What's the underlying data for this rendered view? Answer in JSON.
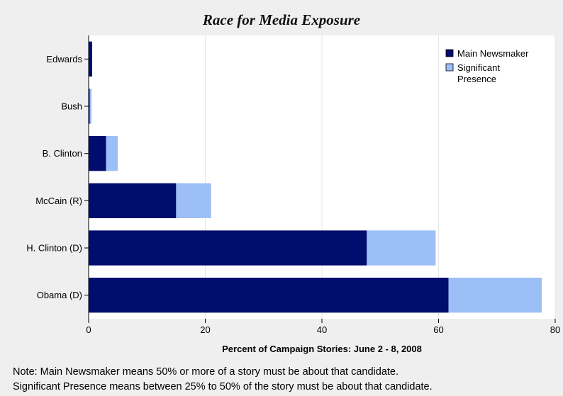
{
  "chart_data": {
    "type": "bar",
    "orientation": "horizontal",
    "stacked": true,
    "title": "Race for Media Exposure",
    "xlabel": "Percent of Campaign Stories: June 2 - 8, 2008",
    "ylabel": "",
    "xlim": [
      0,
      80
    ],
    "xticks": [
      0,
      20,
      40,
      60,
      80
    ],
    "grid": true,
    "legend_position": "top-right",
    "categories": [
      "Edwards",
      "Bush",
      "B. Clinton",
      "McCain (R)",
      "H. Clinton (D)",
      "Obama (D)"
    ],
    "series": [
      {
        "name": "Main Newsmaker",
        "color": "#000c6e",
        "values": [
          0.6,
          0.2,
          3,
          15,
          47.7,
          61.7
        ]
      },
      {
        "name": "Significant Presence",
        "color": "#9dbff7",
        "values": [
          0,
          0.3,
          2,
          6,
          11.8,
          16
        ]
      }
    ]
  },
  "notes": {
    "line1": "Note: Main Newsmaker means 50% or more of a story must be about that candidate.",
    "line2": "Significant Presence means between 25% to 50% of the story must be about that candidate."
  }
}
